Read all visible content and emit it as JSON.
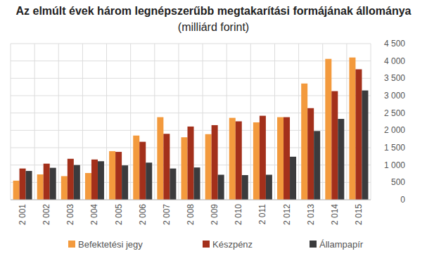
{
  "chart_data": {
    "type": "bar",
    "title": "Az elmúlt évek három legnépszerűbb megtakarítási formájának állománya",
    "subtitle": "(milliárd forint)",
    "categories": [
      "2 001",
      "2 002",
      "2 003",
      "2 004",
      "2 005",
      "2 006",
      "2 007",
      "2 008",
      "2 009",
      "2 010",
      "2 011",
      "2 012",
      "2 013",
      "2 014",
      "2 015"
    ],
    "series": [
      {
        "name": "Befektetési jegy",
        "color": "#f39a3d",
        "values": [
          550,
          730,
          680,
          770,
          1400,
          1850,
          2380,
          1800,
          1890,
          2360,
          2230,
          2380,
          3350,
          4060,
          4100
        ]
      },
      {
        "name": "Készpénz",
        "color": "#a3301b",
        "values": [
          900,
          1040,
          1180,
          1160,
          1380,
          1670,
          1900,
          2110,
          2150,
          2260,
          2420,
          2380,
          2640,
          3130,
          3760
        ]
      },
      {
        "name": "Állampapír",
        "color": "#3b3b3d",
        "values": [
          830,
          920,
          1000,
          1110,
          990,
          1070,
          900,
          930,
          720,
          710,
          720,
          1240,
          1980,
          2330,
          3150
        ]
      }
    ],
    "ylim": [
      0,
      4500
    ],
    "yticks": [
      0,
      500,
      {
        "value": 1000,
        "label": "1 000"
      },
      {
        "value": 1500,
        "label": "1 500"
      },
      {
        "value": 2000,
        "label": "2 000"
      },
      {
        "value": 2500,
        "label": "2 500"
      },
      {
        "value": 3000,
        "label": "3 000"
      },
      {
        "value": 3500,
        "label": "3 500"
      },
      {
        "value": 4000,
        "label": "4 000"
      },
      {
        "value": 4500,
        "label": "4 500"
      }
    ],
    "grid": true,
    "legend": "bottom"
  }
}
